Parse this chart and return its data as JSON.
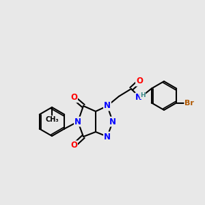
{
  "bg_color": "#e8e8e8",
  "bond_color": "#000000",
  "bond_width": 1.5,
  "atom_colors": {
    "N": "#0000ff",
    "O": "#ff0000",
    "Br": "#b05800",
    "NH": "#3a8a8a",
    "C": "#000000"
  },
  "font_size": 8.5,
  "font_size_br": 8.0,
  "font_size_nh": 7.5
}
